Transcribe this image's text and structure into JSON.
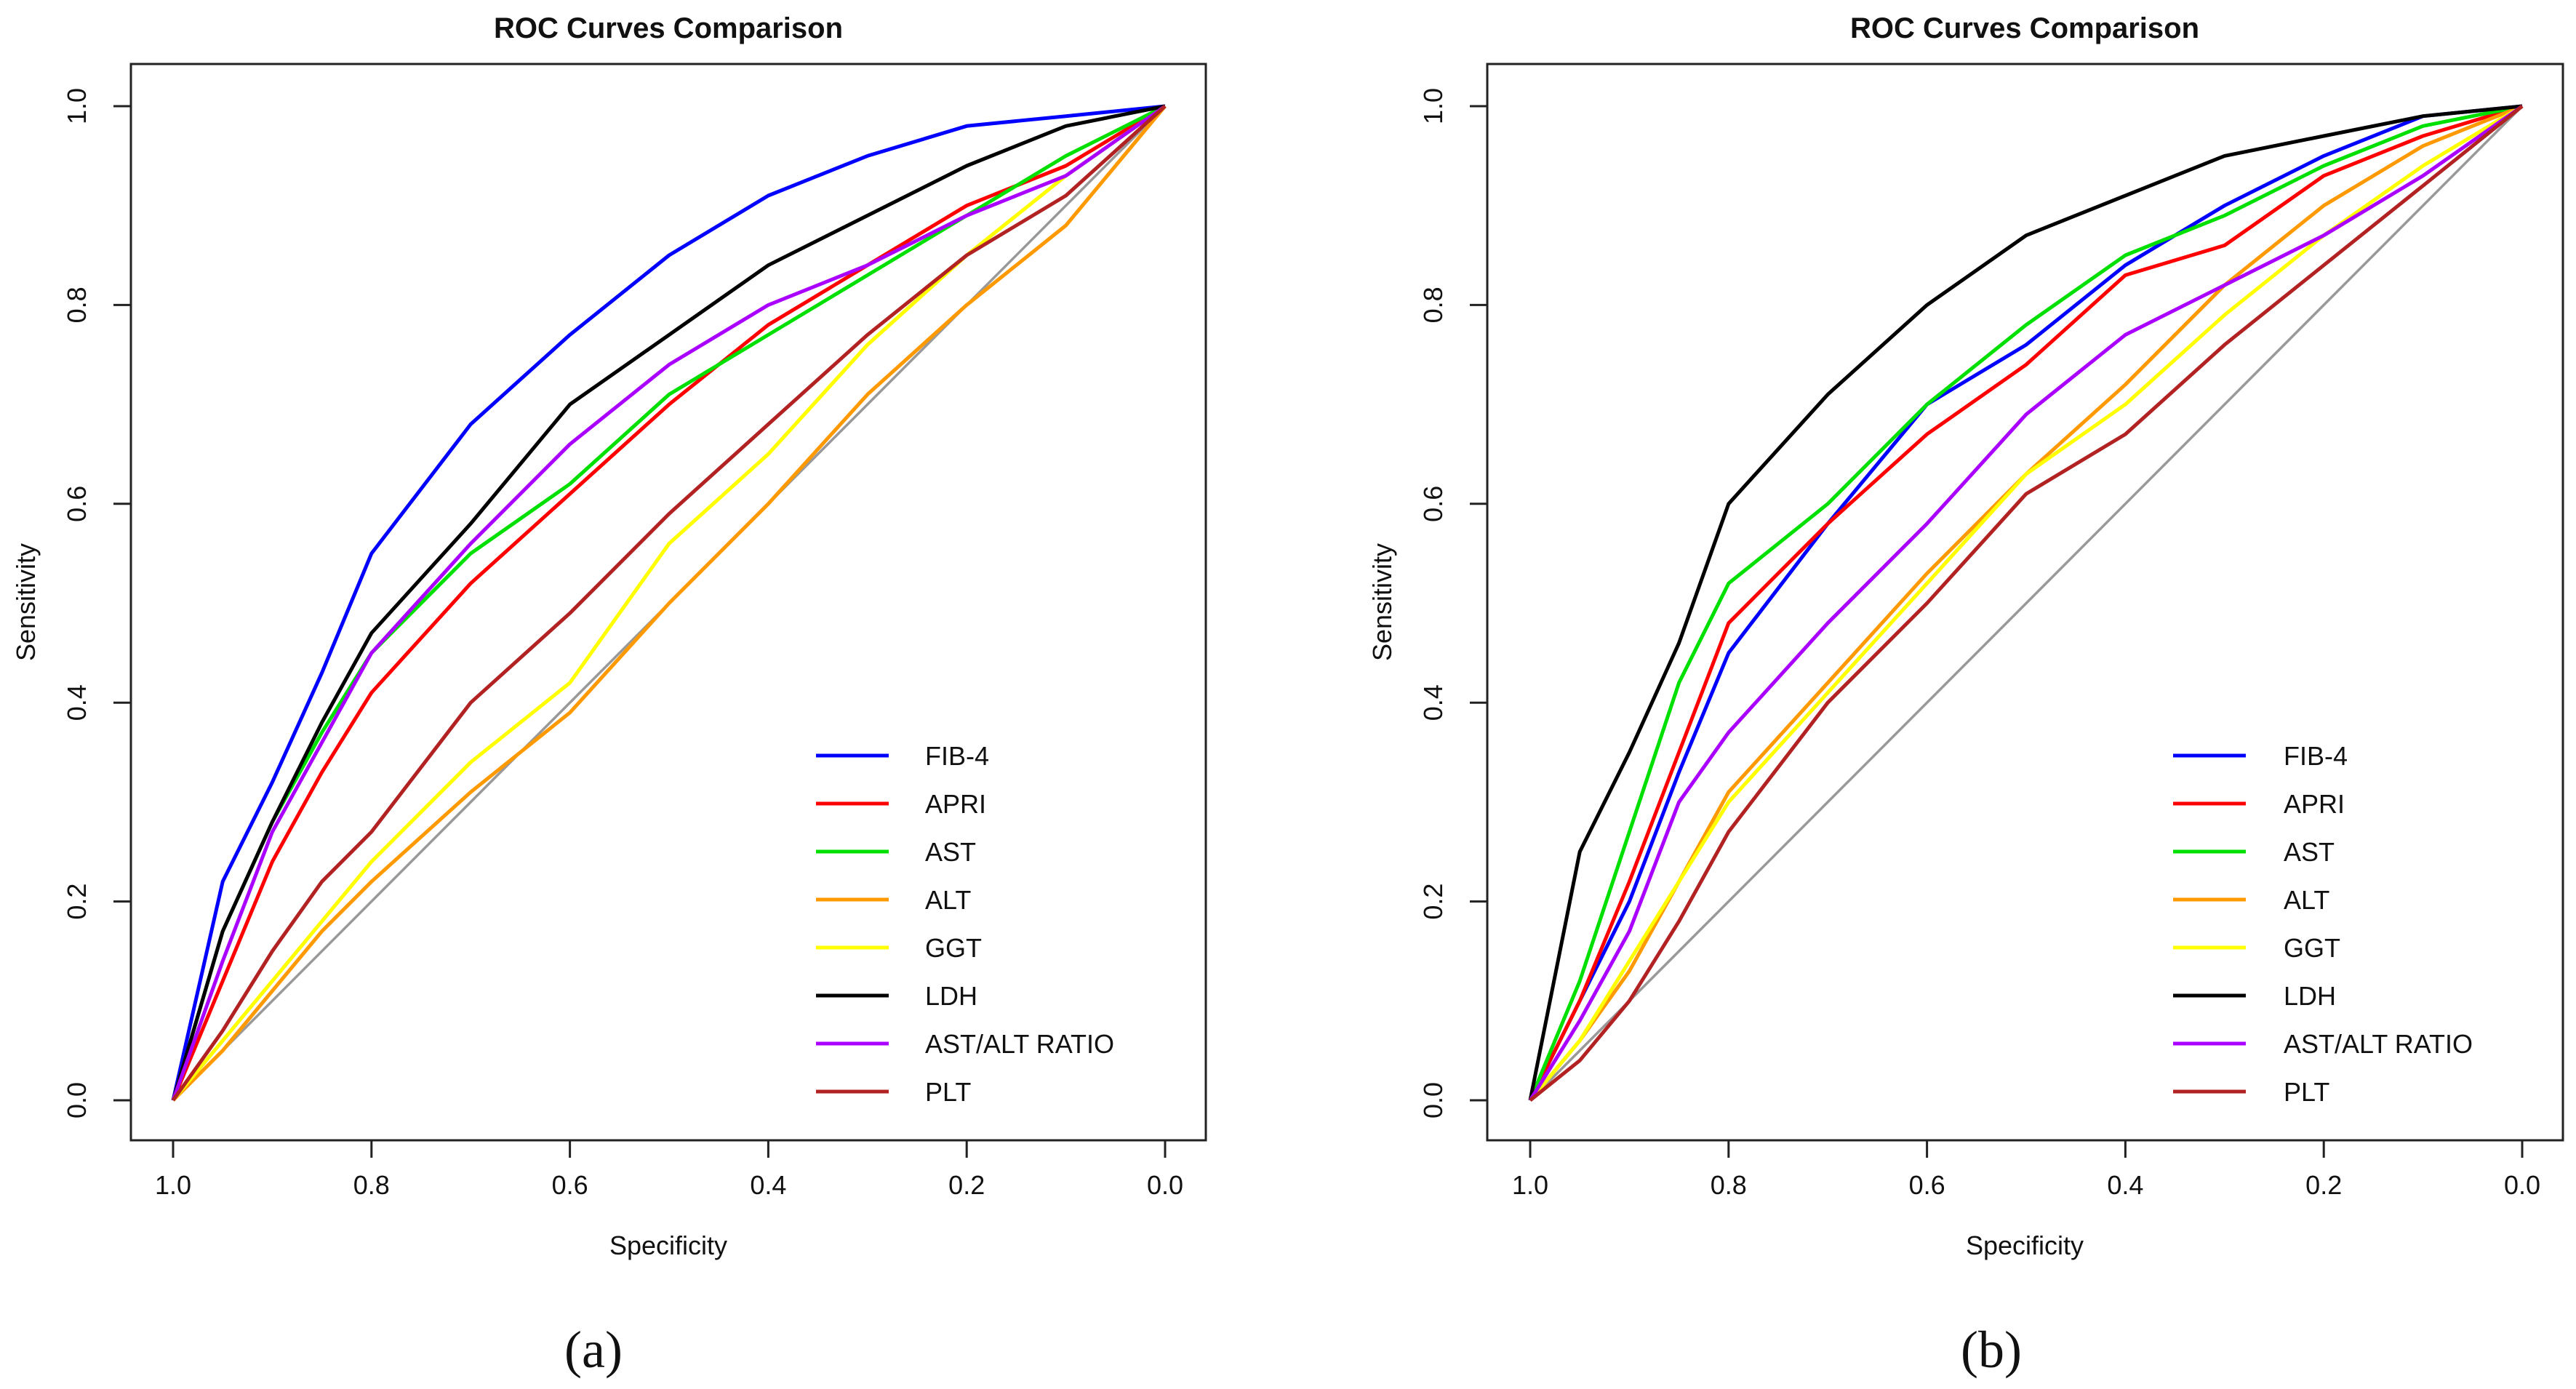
{
  "chart_data": [
    {
      "panel_label": "(a)",
      "type": "line",
      "title": "ROC Curves Comparison",
      "xlabel": "Specificity",
      "ylabel": "Sensitivity",
      "xlim": [
        1.0,
        0.0
      ],
      "ylim": [
        0.0,
        1.0
      ],
      "xticks": [
        "1.0",
        "0.8",
        "0.6",
        "0.4",
        "0.2",
        "0.0"
      ],
      "yticks": [
        "0.0",
        "0.2",
        "0.4",
        "0.6",
        "0.8",
        "1.0"
      ],
      "grid": false,
      "legend_position": "bottom-right",
      "reference_line": {
        "from": [
          1.0,
          0.0
        ],
        "to": [
          0.0,
          1.0
        ],
        "color": "#999999"
      },
      "series": [
        {
          "name": "FIB-4",
          "color": "#0000ff",
          "x": [
            1.0,
            0.95,
            0.9,
            0.85,
            0.8,
            0.7,
            0.6,
            0.5,
            0.4,
            0.3,
            0.2,
            0.1,
            0.0
          ],
          "y": [
            0.0,
            0.22,
            0.32,
            0.43,
            0.55,
            0.68,
            0.77,
            0.85,
            0.91,
            0.95,
            0.98,
            0.99,
            1.0
          ]
        },
        {
          "name": "APRI",
          "color": "#ff0000",
          "x": [
            1.0,
            0.95,
            0.9,
            0.85,
            0.8,
            0.7,
            0.6,
            0.5,
            0.4,
            0.3,
            0.2,
            0.1,
            0.0
          ],
          "y": [
            0.0,
            0.12,
            0.24,
            0.33,
            0.41,
            0.52,
            0.61,
            0.7,
            0.78,
            0.84,
            0.9,
            0.94,
            1.0
          ]
        },
        {
          "name": "AST",
          "color": "#00e000",
          "x": [
            1.0,
            0.95,
            0.9,
            0.85,
            0.8,
            0.7,
            0.6,
            0.5,
            0.4,
            0.3,
            0.2,
            0.1,
            0.0
          ],
          "y": [
            0.0,
            0.17,
            0.28,
            0.37,
            0.45,
            0.55,
            0.62,
            0.71,
            0.77,
            0.83,
            0.89,
            0.95,
            1.0
          ]
        },
        {
          "name": "ALT",
          "color": "#ff9900",
          "x": [
            1.0,
            0.95,
            0.9,
            0.85,
            0.8,
            0.7,
            0.6,
            0.5,
            0.4,
            0.3,
            0.2,
            0.1,
            0.0
          ],
          "y": [
            0.0,
            0.05,
            0.11,
            0.17,
            0.22,
            0.31,
            0.39,
            0.5,
            0.6,
            0.71,
            0.8,
            0.88,
            1.0
          ]
        },
        {
          "name": "GGT",
          "color": "#ffff00",
          "x": [
            1.0,
            0.95,
            0.9,
            0.85,
            0.8,
            0.7,
            0.6,
            0.5,
            0.4,
            0.3,
            0.2,
            0.1,
            0.0
          ],
          "y": [
            0.0,
            0.06,
            0.12,
            0.18,
            0.24,
            0.34,
            0.42,
            0.56,
            0.65,
            0.76,
            0.85,
            0.93,
            1.0
          ]
        },
        {
          "name": "LDH",
          "color": "#000000",
          "x": [
            1.0,
            0.95,
            0.9,
            0.85,
            0.8,
            0.7,
            0.6,
            0.5,
            0.4,
            0.3,
            0.2,
            0.1,
            0.0
          ],
          "y": [
            0.0,
            0.17,
            0.28,
            0.38,
            0.47,
            0.58,
            0.7,
            0.77,
            0.84,
            0.89,
            0.94,
            0.98,
            1.0
          ]
        },
        {
          "name": "AST/ALT RATIO",
          "color": "#aa00ff",
          "x": [
            1.0,
            0.95,
            0.9,
            0.85,
            0.8,
            0.7,
            0.6,
            0.5,
            0.4,
            0.3,
            0.2,
            0.1,
            0.0
          ],
          "y": [
            0.0,
            0.14,
            0.27,
            0.36,
            0.45,
            0.56,
            0.66,
            0.74,
            0.8,
            0.84,
            0.89,
            0.93,
            1.0
          ]
        },
        {
          "name": "PLT",
          "color": "#b22222",
          "x": [
            1.0,
            0.95,
            0.9,
            0.85,
            0.8,
            0.7,
            0.6,
            0.5,
            0.4,
            0.3,
            0.2,
            0.1,
            0.0
          ],
          "y": [
            0.0,
            0.07,
            0.15,
            0.22,
            0.27,
            0.4,
            0.49,
            0.59,
            0.68,
            0.77,
            0.85,
            0.91,
            1.0
          ]
        }
      ]
    },
    {
      "panel_label": "(b)",
      "type": "line",
      "title": "ROC Curves Comparison",
      "xlabel": "Specificity",
      "ylabel": "Sensitivity",
      "xlim": [
        1.0,
        0.0
      ],
      "ylim": [
        0.0,
        1.0
      ],
      "xticks": [
        "1.0",
        "0.8",
        "0.6",
        "0.4",
        "0.2",
        "0.0"
      ],
      "yticks": [
        "0.0",
        "0.2",
        "0.4",
        "0.6",
        "0.8",
        "1.0"
      ],
      "grid": false,
      "legend_position": "bottom-right",
      "reference_line": {
        "from": [
          1.0,
          0.0
        ],
        "to": [
          0.0,
          1.0
        ],
        "color": "#999999"
      },
      "series": [
        {
          "name": "FIB-4",
          "color": "#0000ff",
          "x": [
            1.0,
            0.95,
            0.9,
            0.85,
            0.8,
            0.7,
            0.6,
            0.5,
            0.4,
            0.3,
            0.2,
            0.1,
            0.0
          ],
          "y": [
            0.0,
            0.1,
            0.2,
            0.33,
            0.45,
            0.58,
            0.7,
            0.76,
            0.84,
            0.9,
            0.95,
            0.99,
            1.0
          ]
        },
        {
          "name": "APRI",
          "color": "#ff0000",
          "x": [
            1.0,
            0.95,
            0.9,
            0.85,
            0.8,
            0.7,
            0.6,
            0.5,
            0.4,
            0.3,
            0.2,
            0.1,
            0.0
          ],
          "y": [
            0.0,
            0.1,
            0.22,
            0.35,
            0.48,
            0.58,
            0.67,
            0.74,
            0.83,
            0.86,
            0.93,
            0.97,
            1.0
          ]
        },
        {
          "name": "AST",
          "color": "#00e000",
          "x": [
            1.0,
            0.95,
            0.9,
            0.85,
            0.8,
            0.7,
            0.6,
            0.5,
            0.4,
            0.3,
            0.2,
            0.1,
            0.0
          ],
          "y": [
            0.0,
            0.12,
            0.27,
            0.42,
            0.52,
            0.6,
            0.7,
            0.78,
            0.85,
            0.89,
            0.94,
            0.98,
            1.0
          ]
        },
        {
          "name": "ALT",
          "color": "#ff9900",
          "x": [
            1.0,
            0.95,
            0.9,
            0.85,
            0.8,
            0.7,
            0.6,
            0.5,
            0.4,
            0.3,
            0.2,
            0.1,
            0.0
          ],
          "y": [
            0.0,
            0.06,
            0.13,
            0.22,
            0.31,
            0.42,
            0.53,
            0.63,
            0.72,
            0.82,
            0.9,
            0.96,
            1.0
          ]
        },
        {
          "name": "GGT",
          "color": "#ffff00",
          "x": [
            1.0,
            0.95,
            0.9,
            0.85,
            0.8,
            0.7,
            0.6,
            0.5,
            0.4,
            0.3,
            0.2,
            0.1,
            0.0
          ],
          "y": [
            0.0,
            0.06,
            0.14,
            0.22,
            0.3,
            0.41,
            0.52,
            0.63,
            0.7,
            0.79,
            0.87,
            0.94,
            1.0
          ]
        },
        {
          "name": "LDH",
          "color": "#000000",
          "x": [
            1.0,
            0.95,
            0.9,
            0.85,
            0.8,
            0.7,
            0.6,
            0.5,
            0.4,
            0.3,
            0.2,
            0.1,
            0.0
          ],
          "y": [
            0.0,
            0.25,
            0.35,
            0.46,
            0.6,
            0.71,
            0.8,
            0.87,
            0.91,
            0.95,
            0.97,
            0.99,
            1.0
          ]
        },
        {
          "name": "AST/ALT RATIO",
          "color": "#aa00ff",
          "x": [
            1.0,
            0.95,
            0.9,
            0.85,
            0.8,
            0.7,
            0.6,
            0.5,
            0.4,
            0.3,
            0.2,
            0.1,
            0.0
          ],
          "y": [
            0.0,
            0.08,
            0.17,
            0.3,
            0.37,
            0.48,
            0.58,
            0.69,
            0.77,
            0.82,
            0.87,
            0.93,
            1.0
          ]
        },
        {
          "name": "PLT",
          "color": "#b22222",
          "x": [
            1.0,
            0.95,
            0.9,
            0.85,
            0.8,
            0.7,
            0.6,
            0.5,
            0.4,
            0.3,
            0.2,
            0.1,
            0.0
          ],
          "y": [
            0.0,
            0.04,
            0.1,
            0.18,
            0.27,
            0.4,
            0.5,
            0.61,
            0.67,
            0.76,
            0.84,
            0.92,
            1.0
          ]
        }
      ]
    }
  ]
}
